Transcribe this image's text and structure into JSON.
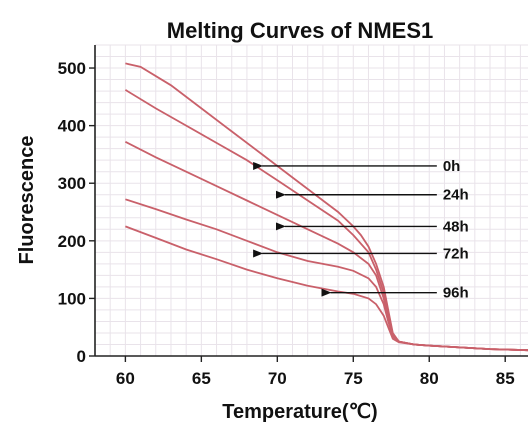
{
  "chart_data": {
    "type": "line",
    "title": "Melting Curves of NMES1",
    "xlabel": "Temperature(℃)",
    "ylabel": "Fluorescence",
    "xlim": [
      58,
      86.5
    ],
    "ylim": [
      0,
      540
    ],
    "xticks": [
      60,
      65,
      70,
      75,
      80,
      85
    ],
    "yticks": [
      0,
      100,
      200,
      300,
      400,
      500
    ],
    "grid": true,
    "line_color": "#c9606a",
    "series": [
      {
        "name": "0h",
        "x": [
          60,
          61,
          63,
          65,
          67,
          69,
          71,
          73,
          74,
          75,
          75.5,
          76,
          76.5,
          77,
          77.3,
          77.6,
          78,
          79,
          80,
          82,
          84,
          86.5
        ],
        "y": [
          508,
          502,
          470,
          430,
          390,
          350,
          310,
          270,
          250,
          225,
          210,
          190,
          160,
          120,
          80,
          40,
          25,
          20,
          18,
          15,
          12,
          10
        ]
      },
      {
        "name": "24h",
        "x": [
          60,
          62,
          64,
          66,
          68,
          70,
          72,
          74,
          75,
          76,
          76.5,
          77,
          77.3,
          77.6,
          78,
          79,
          80,
          82,
          84,
          86.5
        ],
        "y": [
          462,
          430,
          400,
          370,
          340,
          305,
          270,
          235,
          210,
          180,
          150,
          110,
          70,
          38,
          25,
          20,
          18,
          15,
          12,
          10
        ]
      },
      {
        "name": "48h",
        "x": [
          60,
          62,
          64,
          66,
          68,
          70,
          72,
          74,
          75,
          76,
          76.5,
          77,
          77.3,
          77.6,
          78,
          79,
          80,
          82,
          84,
          86.5
        ],
        "y": [
          372,
          345,
          320,
          295,
          270,
          245,
          220,
          195,
          180,
          160,
          140,
          100,
          65,
          35,
          25,
          20,
          18,
          15,
          12,
          10
        ]
      },
      {
        "name": "72h",
        "x": [
          60,
          62,
          64,
          66,
          68,
          70,
          72,
          74,
          75,
          76,
          76.5,
          77,
          77.3,
          77.6,
          78,
          79,
          80,
          82,
          84,
          86.5
        ],
        "y": [
          272,
          255,
          237,
          220,
          200,
          180,
          165,
          155,
          148,
          135,
          120,
          90,
          60,
          34,
          25,
          20,
          18,
          15,
          12,
          10
        ]
      },
      {
        "name": "96h",
        "x": [
          60,
          62,
          64,
          66,
          68,
          70,
          72,
          74,
          75,
          76,
          76.5,
          77,
          77.3,
          77.6,
          78,
          79,
          80,
          82,
          84,
          86.5
        ],
        "y": [
          225,
          205,
          185,
          168,
          150,
          135,
          122,
          112,
          108,
          100,
          90,
          70,
          50,
          30,
          24,
          20,
          18,
          15,
          12,
          10
        ]
      }
    ],
    "annotations": [
      {
        "label": "0h",
        "arrow_tip": [
          69,
          330
        ]
      },
      {
        "label": "24h",
        "arrow_tip": [
          70.5,
          280
        ]
      },
      {
        "label": "48h",
        "arrow_tip": [
          70.5,
          225
        ]
      },
      {
        "label": "72h",
        "arrow_tip": [
          69,
          178
        ]
      },
      {
        "label": "96h",
        "arrow_tip": [
          73.5,
          110
        ]
      }
    ]
  }
}
